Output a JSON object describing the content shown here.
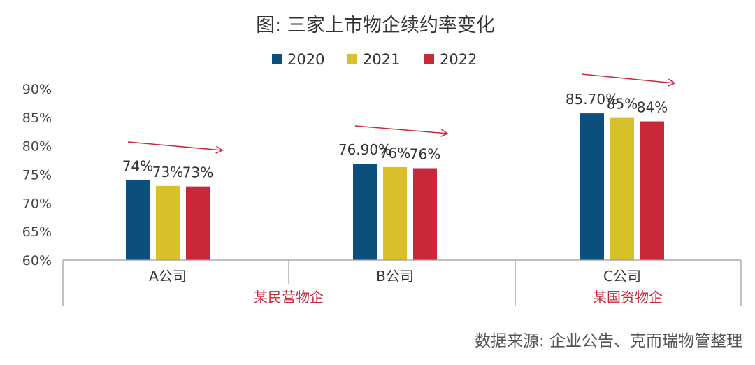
{
  "chart_data": {
    "type": "bar",
    "title": "图: 三家上市物企续约率变化",
    "categories": [
      "A公司",
      "B公司",
      "C公司"
    ],
    "groups": [
      {
        "label": "某民营物企",
        "categories": [
          "A公司",
          "B公司"
        ]
      },
      {
        "label": "某国资物企",
        "categories": [
          "C公司"
        ]
      }
    ],
    "series": [
      {
        "name": "2020",
        "color": "#0b4f7c",
        "values": [
          74,
          76.9,
          85.7
        ],
        "labels": [
          "74%",
          "76.90%",
          "85.70%"
        ]
      },
      {
        "name": "2021",
        "color": "#d8c02a",
        "values": [
          73,
          76.3,
          84.9
        ],
        "labels": [
          "73%",
          "76%",
          "85%"
        ]
      },
      {
        "name": "2022",
        "color": "#c8283a",
        "values": [
          72.9,
          76.1,
          84.3
        ],
        "labels": [
          "73%",
          "76%",
          "84%"
        ]
      }
    ],
    "ylim": [
      60,
      90
    ],
    "yticks": [
      {
        "value": 60,
        "label": "60%"
      },
      {
        "value": 65,
        "label": "65%"
      },
      {
        "value": 70,
        "label": "70%"
      },
      {
        "value": 75,
        "label": "75%"
      },
      {
        "value": 80,
        "label": "80%"
      },
      {
        "value": 85,
        "label": "85%"
      },
      {
        "value": 90,
        "label": "90%"
      }
    ],
    "legend_position": "top-center",
    "grid": false,
    "annotations": [
      "trend arrows above each company's bars"
    ],
    "arrow_color": "#c8283a"
  },
  "source": "数据来源: 企业公告、克而瑞物管整理"
}
